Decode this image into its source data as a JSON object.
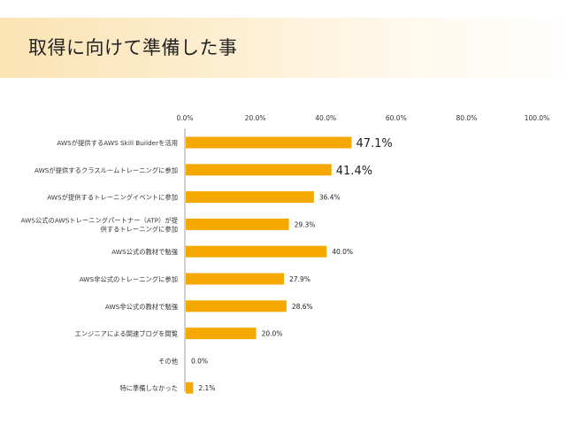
{
  "page": {
    "title": "取得に向けて準備した事"
  },
  "chart_data": {
    "type": "bar",
    "orientation": "horizontal",
    "title": "",
    "xlabel": "",
    "ylabel": "",
    "xlim": [
      0,
      100
    ],
    "ticks": [
      "0.0%",
      "20.0%",
      "40.0%",
      "60.0%",
      "80.0%",
      "100.0%"
    ],
    "tick_position": "top",
    "grid": false,
    "bar_color": "#f5a800",
    "categories": [
      [
        "AWSが提供するAWS Skill Builderを活用"
      ],
      [
        "AWSが提供するクラスルームトレーニングに参加"
      ],
      [
        "AWSが提供するトレーニングイベントに参加"
      ],
      [
        "AWS公式のAWSトレーニングパートナー（ATP）が提",
        "供するトレーニングに参加"
      ],
      [
        "AWS公式の教材で勉強"
      ],
      [
        "AWS非公式のトレーニングに参加"
      ],
      [
        "AWS非公式の教材で勉強"
      ],
      [
        "エンジニアによる関連ブログを閲覧"
      ],
      [
        "その他"
      ],
      [
        "特に準備しなかった"
      ]
    ],
    "values": [
      47.1,
      41.4,
      36.4,
      29.3,
      40.0,
      27.9,
      28.6,
      20.0,
      0.0,
      2.1
    ],
    "value_labels": [
      "47.1%",
      "41.4%",
      "36.4%",
      "29.3%",
      "40.0%",
      "27.9%",
      "28.6%",
      "20.0%",
      "0.0%",
      "2.1%"
    ],
    "highlighted": [
      true,
      true,
      false,
      false,
      false,
      false,
      false,
      false,
      false,
      false
    ]
  }
}
